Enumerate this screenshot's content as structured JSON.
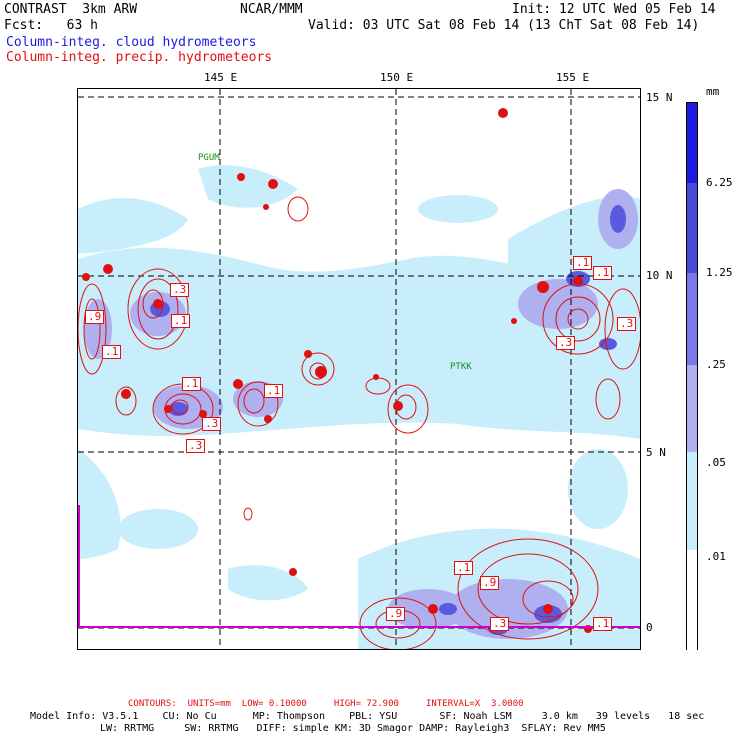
{
  "header": {
    "line1_left": "CONTRAST  3km ARW",
    "line1_center": "NCAR/MMM",
    "line1_right": "Init: 12 UTC Wed 05 Feb 14",
    "line2_left": "Fcst:   63 h",
    "line2_right": "Valid: 03 UTC Sat 08 Feb 14 (13 ChT Sat 08 Feb 14)",
    "field1": "Column-integ. cloud hydrometeors",
    "field2": "Column-integ. precip. hydrometeors"
  },
  "map": {
    "lon_labels": [
      "145 E",
      "150 E",
      "155 E"
    ],
    "lat_labels": [
      "15 N",
      "10 N",
      "5 N",
      "0"
    ],
    "stations": [
      "PGUM",
      "PTKK"
    ],
    "contour_labels": [
      ".3",
      ".1",
      ".9",
      ".1",
      ".1",
      ".1",
      ".3",
      ".3",
      ".1",
      ".1",
      ".3",
      ".3",
      ".1",
      ".9",
      ".9",
      ".1",
      ".3"
    ]
  },
  "colorbar": {
    "unit": "mm",
    "levels": [
      "6.25",
      "1.25",
      ".25",
      ".05",
      ".01"
    ],
    "colors": [
      "#1a1ae0",
      "#4a4ad8",
      "#7a7ae6",
      "#aeb0f0",
      "#c8eefc",
      "#ffffff"
    ]
  },
  "footer": {
    "contours": "CONTOURS:  UNITS=mm  LOW= 0.10000     HIGH= 72.900     INTERVAL=X  3.0000",
    "model1": "Model Info: V3.5.1    CU: No Cu      MP: Thompson    PBL: YSU       SF: Noah LSM     3.0 km   39 levels   18 sec",
    "model2": "LW: RRTMG     SW: RRTMG   DIFF: simple KM: 3D Smagor DAMP: Rayleigh3  SFLAY: Rev MM5"
  }
}
